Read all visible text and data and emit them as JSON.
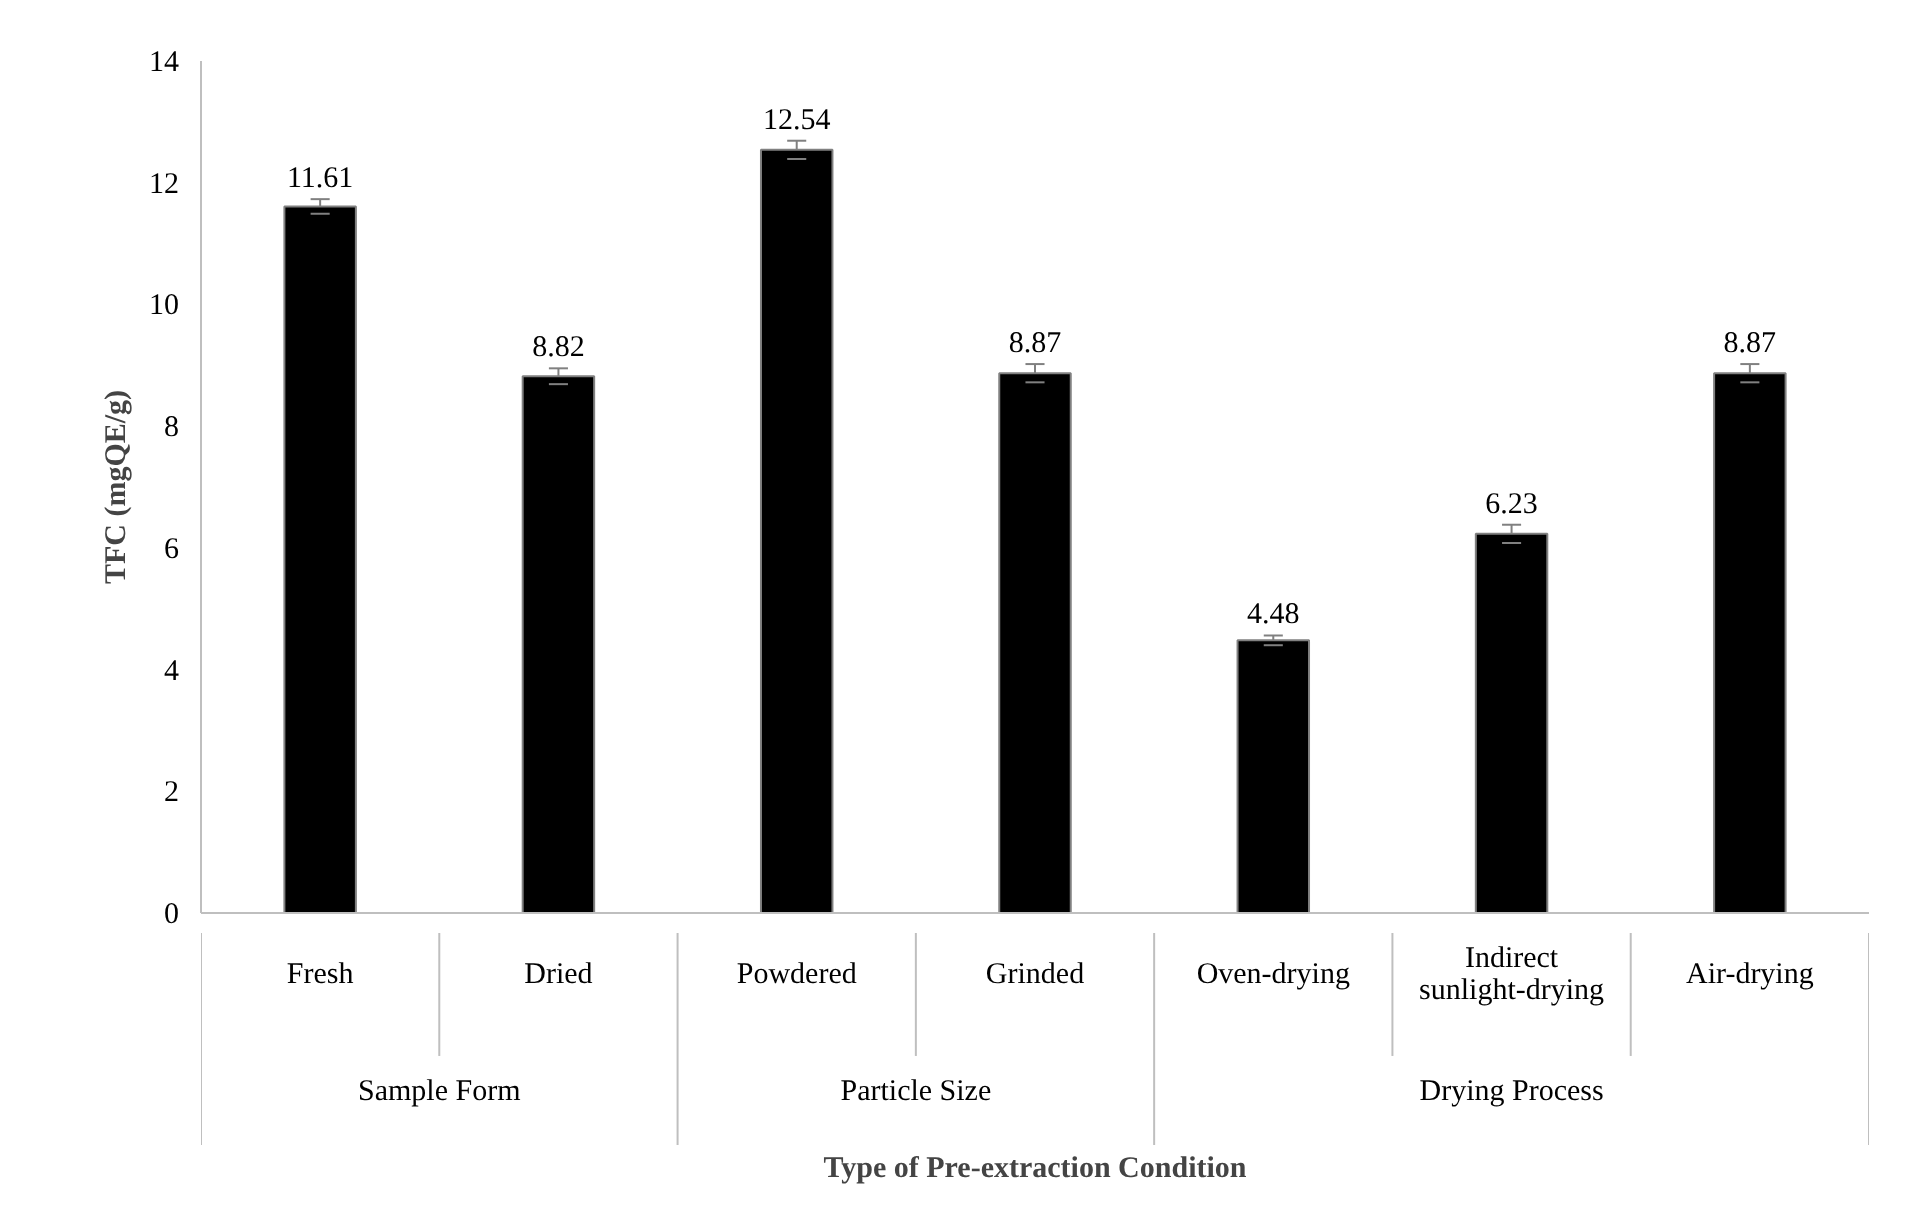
{
  "chart_data": {
    "type": "bar",
    "xlabel": "Type of Pre-extraction Condition",
    "ylabel": "TFC (mgQE/g)",
    "categories": [
      "Fresh",
      "Dried",
      "Powdered",
      "Grinded",
      "Oven-drying",
      "Indirect sunlight-drying",
      "Air-drying"
    ],
    "values": [
      11.61,
      8.82,
      12.54,
      8.87,
      4.48,
      6.23,
      8.87
    ],
    "errors": [
      0.12,
      0.13,
      0.15,
      0.15,
      0.08,
      0.15,
      0.15
    ],
    "color": "#000000",
    "data_labels": true,
    "ylim": [
      0,
      14
    ],
    "yticks": [
      0,
      2,
      4,
      6,
      8,
      10,
      12,
      14
    ],
    "grid": false,
    "annotations": [
      "Sample Form",
      "Particle Size",
      "Drying Process"
    ]
  }
}
